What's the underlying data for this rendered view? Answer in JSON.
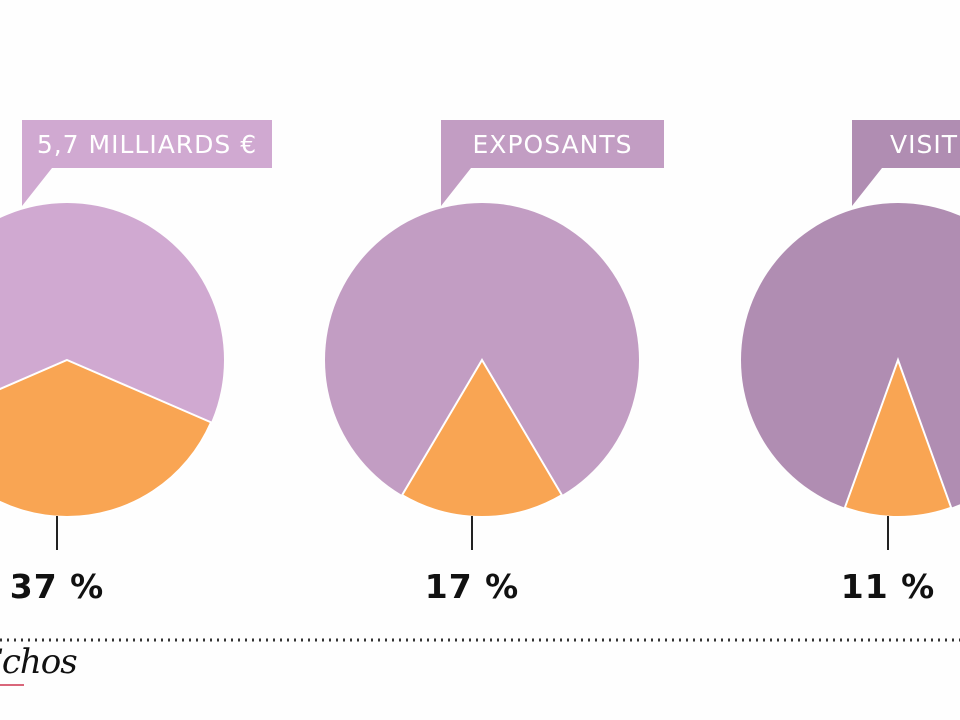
{
  "chart_data": {
    "type": "pie",
    "charts": [
      {
        "label": "5,7 MILLIARDS €",
        "highlight_percent": 37,
        "value_label": "37 %",
        "color_main": "#d0a9d1",
        "color_highlight": "#f9a553"
      },
      {
        "label": "EXPOSANTS",
        "highlight_percent": 17,
        "value_label": "17 %",
        "color_main": "#c29dc3",
        "color_highlight": "#f9a553"
      },
      {
        "label": "VISIT",
        "highlight_percent": 11,
        "value_label": "11 %",
        "color_main": "#b08db2",
        "color_highlight": "#f9a553"
      }
    ]
  },
  "footer": {
    "logo_text": "Echos"
  }
}
